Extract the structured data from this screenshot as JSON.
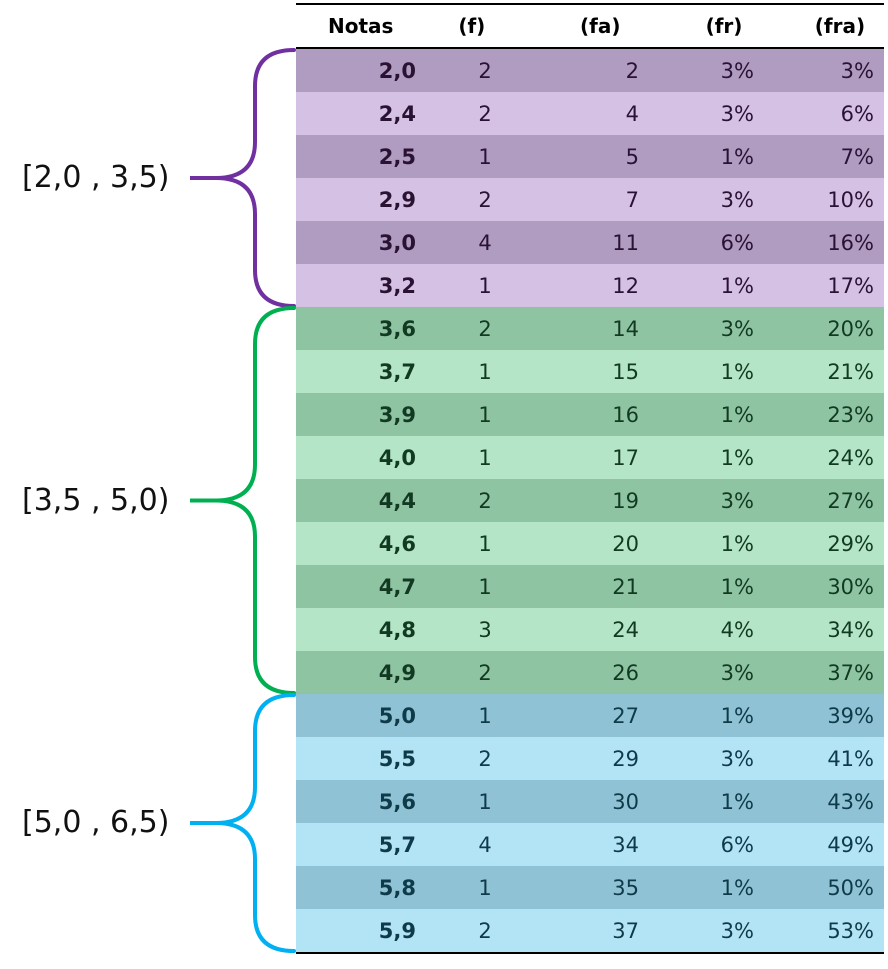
{
  "headers": [
    "Notas",
    "(f)",
    "(fa)",
    "(fr)",
    "(fra)"
  ],
  "groups": [
    {
      "label": "[2,0 , 3,5)",
      "colors": {
        "dark": "#b09bc1",
        "light": "#d5c1e4",
        "text": "#2a1233",
        "brace": "#7030a0"
      },
      "rows": [
        [
          "2,0",
          "2",
          "2",
          "3%",
          "3%"
        ],
        [
          "2,4",
          "2",
          "4",
          "3%",
          "6%"
        ],
        [
          "2,5",
          "1",
          "5",
          "1%",
          "7%"
        ],
        [
          "2,9",
          "2",
          "7",
          "3%",
          "10%"
        ],
        [
          "3,0",
          "4",
          "11",
          "6%",
          "16%"
        ],
        [
          "3,2",
          "1",
          "12",
          "1%",
          "17%"
        ]
      ]
    },
    {
      "label": "[3,5 , 5,0)",
      "colors": {
        "dark": "#8ec4a2",
        "light": "#b3e5c6",
        "text": "#123a22",
        "brace": "#00b050"
      },
      "rows": [
        [
          "3,6",
          "2",
          "14",
          "3%",
          "20%"
        ],
        [
          "3,7",
          "1",
          "15",
          "1%",
          "21%"
        ],
        [
          "3,9",
          "1",
          "16",
          "1%",
          "23%"
        ],
        [
          "4,0",
          "1",
          "17",
          "1%",
          "24%"
        ],
        [
          "4,4",
          "2",
          "19",
          "3%",
          "27%"
        ],
        [
          "4,6",
          "1",
          "20",
          "1%",
          "29%"
        ],
        [
          "4,7",
          "1",
          "21",
          "1%",
          "30%"
        ],
        [
          "4,8",
          "3",
          "24",
          "4%",
          "34%"
        ],
        [
          "4,9",
          "2",
          "26",
          "3%",
          "37%"
        ]
      ]
    },
    {
      "label": "[5,0 , 6,5)",
      "colors": {
        "dark": "#8ec2d4",
        "light": "#b3e4f5",
        "text": "#0f3a4a",
        "brace": "#00b0f0"
      },
      "rows": [
        [
          "5,0",
          "1",
          "27",
          "1%",
          "39%"
        ],
        [
          "5,5",
          "2",
          "29",
          "3%",
          "41%"
        ],
        [
          "5,6",
          "1",
          "30",
          "1%",
          "43%"
        ],
        [
          "5,7",
          "4",
          "34",
          "6%",
          "49%"
        ],
        [
          "5,8",
          "1",
          "35",
          "1%",
          "50%"
        ],
        [
          "5,9",
          "2",
          "37",
          "3%",
          "53%"
        ]
      ]
    }
  ]
}
